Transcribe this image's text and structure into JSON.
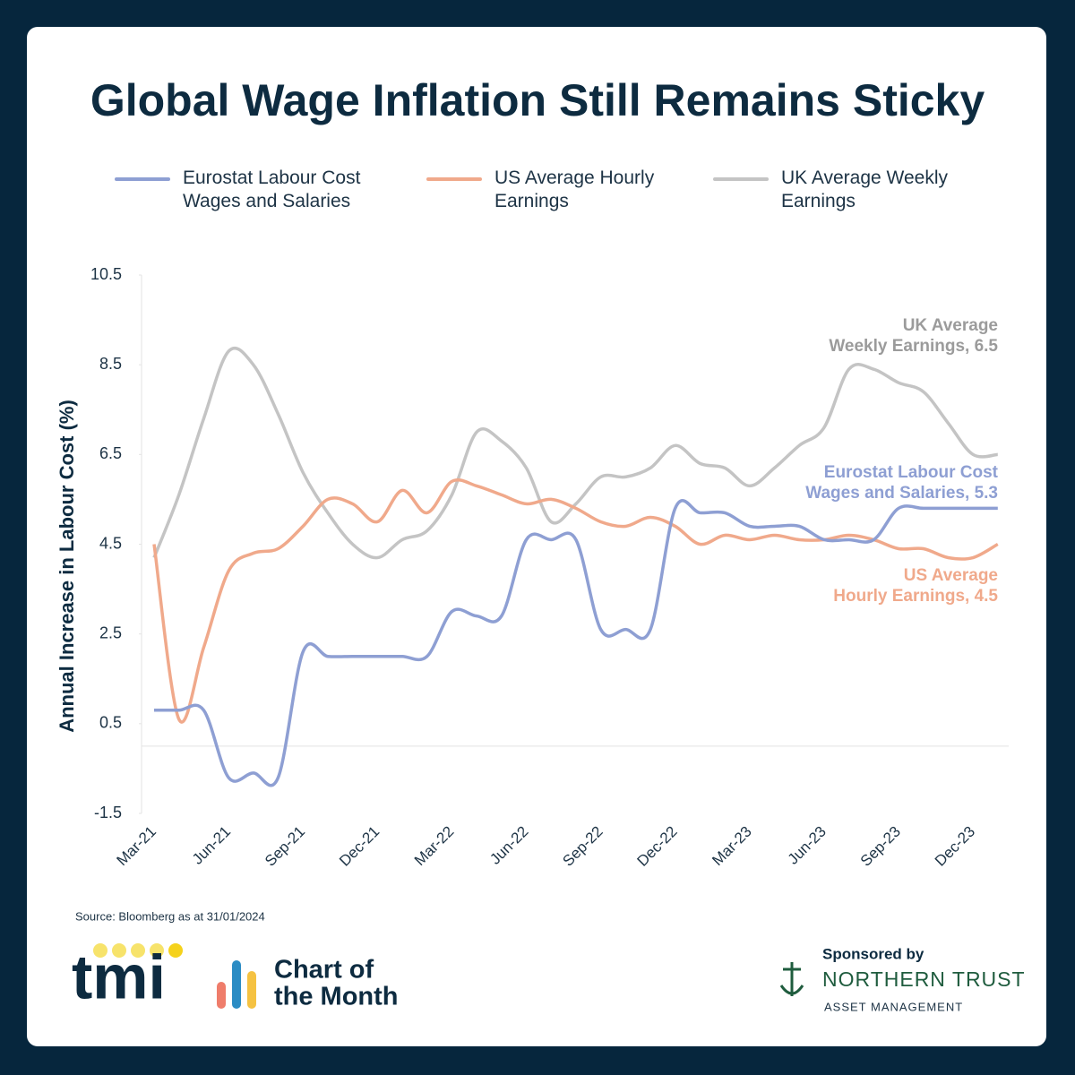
{
  "chart_data": {
    "type": "line",
    "title": "Global Wage Inflation Still Remains Sticky",
    "y_label": "Annual Increase in Labour Cost (%)",
    "source": "Source: Bloomberg as at 31/01/2024",
    "categories": [
      "Mar-21",
      null,
      null,
      "Jun-21",
      null,
      null,
      "Sep-21",
      null,
      null,
      "Dec-21",
      null,
      null,
      "Mar-22",
      null,
      null,
      "Jun-22",
      null,
      null,
      "Sep-22",
      null,
      null,
      "Dec-22",
      null,
      null,
      "Mar-23",
      null,
      null,
      "Jun-23",
      null,
      null,
      "Sep-23",
      null,
      null,
      "Dec-23",
      null
    ],
    "series": [
      {
        "name": "Eurostat Labour Cost Wages and Salaries",
        "color": "#8e9fd3",
        "values": [
          0.8,
          0.8,
          0.8,
          -0.7,
          -0.6,
          -0.7,
          2.1,
          2.0,
          2.0,
          2.0,
          2.0,
          2.0,
          3.0,
          2.9,
          2.9,
          4.6,
          4.6,
          4.6,
          2.6,
          2.6,
          2.6,
          5.3,
          5.2,
          5.2,
          4.9,
          4.9,
          4.9,
          4.6,
          4.6,
          4.6,
          5.3,
          5.3,
          5.3,
          5.3,
          5.3
        ]
      },
      {
        "name": "US Average Hourly Earnings",
        "color": "#f0a98b",
        "values": [
          4.5,
          0.6,
          2.2,
          3.9,
          4.3,
          4.4,
          4.9,
          5.5,
          5.4,
          5.0,
          5.7,
          5.2,
          5.9,
          5.8,
          5.6,
          5.4,
          5.5,
          5.3,
          5.0,
          4.9,
          5.1,
          4.9,
          4.5,
          4.7,
          4.6,
          4.7,
          4.6,
          4.6,
          4.7,
          4.6,
          4.4,
          4.4,
          4.2,
          4.2,
          4.5
        ]
      },
      {
        "name": "UK Average Weekly Earnings",
        "color": "#c4c4c4",
        "values": [
          4.2,
          5.6,
          7.3,
          8.8,
          8.5,
          7.4,
          6.1,
          5.2,
          4.5,
          4.2,
          4.6,
          4.8,
          5.6,
          7.0,
          6.8,
          6.2,
          5.0,
          5.4,
          6.0,
          6.0,
          6.2,
          6.7,
          6.3,
          6.2,
          5.8,
          6.2,
          6.7,
          7.1,
          8.4,
          8.4,
          8.1,
          7.9,
          7.2,
          6.5,
          6.5
        ]
      }
    ],
    "ylim": [
      -1.5,
      10.5
    ],
    "yticks": [
      10.5,
      8.5,
      6.5,
      4.5,
      2.5,
      0.5,
      -1.5
    ],
    "annotations": [
      {
        "lines": [
          "UK Average",
          "Weekly Earnings, 6.5"
        ],
        "color": "#9b9b9b"
      },
      {
        "lines": [
          "Eurostat Labour Cost",
          "Wages and Salaries, 5.3"
        ],
        "color": "#8e9fd3"
      },
      {
        "lines": [
          "US Average",
          "Hourly Earnings, 4.5"
        ],
        "color": "#f0a98b"
      }
    ]
  },
  "footer": {
    "brand": "tmi",
    "product": [
      "Chart of",
      "the Month"
    ],
    "sponsor_label": "Sponsored by",
    "sponsor": "NORTHERN TRUST",
    "sponsor_sub": "ASSET MANAGEMENT"
  }
}
